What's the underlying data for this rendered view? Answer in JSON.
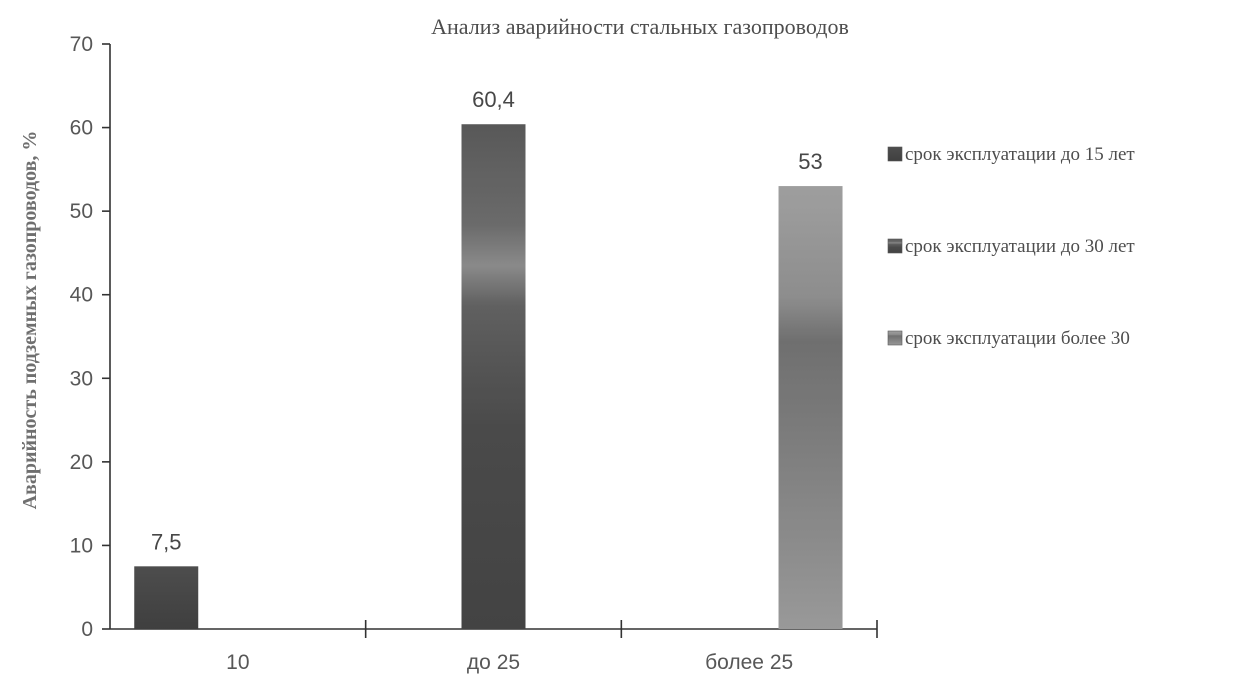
{
  "chart_data": {
    "type": "bar",
    "title": "Анализ аварийности стальных газопроводов",
    "xlabel": "",
    "ylabel": "Аварийность подземных газопроводов, %",
    "categories": [
      "10",
      "до 25",
      "более 25"
    ],
    "ylim": [
      0,
      70
    ],
    "yticks": [
      0,
      10,
      20,
      30,
      40,
      50,
      60,
      70
    ],
    "grid": false,
    "legend_position": "right",
    "series": [
      {
        "name": "срок эксплуатации до 15 лет",
        "color": "#4a4a4a",
        "values": [
          7.5,
          null,
          null
        ],
        "data_labels": [
          "7,5",
          "",
          ""
        ]
      },
      {
        "name": "срок эксплуатации до 30 лет",
        "color": "#4a4a4a",
        "values": [
          null,
          60.4,
          null
        ],
        "data_labels": [
          "",
          "60,4",
          ""
        ]
      },
      {
        "name": "срок эксплуатации более 30",
        "color": "#777777",
        "values": [
          null,
          null,
          53
        ],
        "data_labels": [
          "",
          "",
          "53"
        ]
      }
    ]
  }
}
